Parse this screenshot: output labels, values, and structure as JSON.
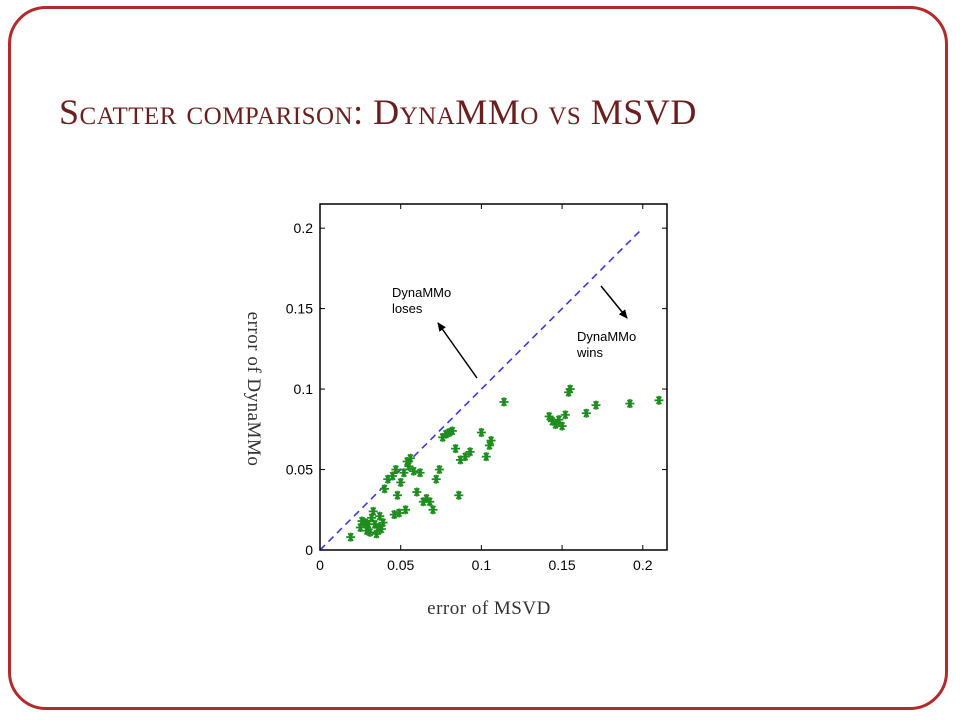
{
  "slide": {
    "title": "Scatter comparison: DynaMMo vs MSVD",
    "border_color": "#b22b2b",
    "title_color": "#6b1e1e"
  },
  "chart_data": {
    "type": "scatter",
    "xlabel": "error of MSVD",
    "ylabel": "error of DynaMMo",
    "xlim": [
      0,
      0.215
    ],
    "ylim": [
      0,
      0.215
    ],
    "xticks": [
      "0",
      "0.05",
      "0.1",
      "0.15",
      "0.2"
    ],
    "yticks": [
      "0",
      "0.05",
      "0.1",
      "0.15",
      "0.2"
    ],
    "grid": false,
    "marker": "asterisk",
    "marker_color": "#1e8c1e",
    "reference_line": {
      "style": "dashed",
      "color": "#3a3ad6",
      "from": [
        0,
        0
      ],
      "to": [
        0.2,
        0.2
      ]
    },
    "annotations": [
      {
        "text_lines": [
          "DynaMMo",
          "loses"
        ]
      },
      {
        "text_lines": [
          "DynaMMo",
          "wins"
        ]
      }
    ],
    "series": [
      {
        "points": [
          [
            0.019,
            0.008
          ],
          [
            0.025,
            0.014
          ],
          [
            0.026,
            0.018
          ],
          [
            0.028,
            0.017
          ],
          [
            0.029,
            0.012
          ],
          [
            0.03,
            0.016
          ],
          [
            0.031,
            0.011
          ],
          [
            0.032,
            0.02
          ],
          [
            0.033,
            0.024
          ],
          [
            0.034,
            0.016
          ],
          [
            0.035,
            0.01
          ],
          [
            0.036,
            0.014
          ],
          [
            0.037,
            0.021
          ],
          [
            0.038,
            0.013
          ],
          [
            0.039,
            0.017
          ],
          [
            0.04,
            0.038
          ],
          [
            0.042,
            0.044
          ],
          [
            0.045,
            0.046
          ],
          [
            0.046,
            0.022
          ],
          [
            0.047,
            0.05
          ],
          [
            0.048,
            0.034
          ],
          [
            0.049,
            0.023
          ],
          [
            0.05,
            0.042
          ],
          [
            0.052,
            0.048
          ],
          [
            0.053,
            0.025
          ],
          [
            0.054,
            0.055
          ],
          [
            0.055,
            0.052
          ],
          [
            0.056,
            0.057
          ],
          [
            0.058,
            0.049
          ],
          [
            0.06,
            0.036
          ],
          [
            0.062,
            0.048
          ],
          [
            0.064,
            0.03
          ],
          [
            0.066,
            0.032
          ],
          [
            0.068,
            0.03
          ],
          [
            0.07,
            0.025
          ],
          [
            0.072,
            0.044
          ],
          [
            0.074,
            0.05
          ],
          [
            0.076,
            0.07
          ],
          [
            0.078,
            0.072
          ],
          [
            0.08,
            0.073
          ],
          [
            0.082,
            0.074
          ],
          [
            0.084,
            0.063
          ],
          [
            0.086,
            0.034
          ],
          [
            0.087,
            0.056
          ],
          [
            0.09,
            0.058
          ],
          [
            0.093,
            0.061
          ],
          [
            0.1,
            0.073
          ],
          [
            0.103,
            0.058
          ],
          [
            0.105,
            0.065
          ],
          [
            0.106,
            0.068
          ],
          [
            0.114,
            0.092
          ],
          [
            0.142,
            0.083
          ],
          [
            0.144,
            0.08
          ],
          [
            0.146,
            0.078
          ],
          [
            0.148,
            0.081
          ],
          [
            0.15,
            0.077
          ],
          [
            0.152,
            0.084
          ],
          [
            0.154,
            0.098
          ],
          [
            0.155,
            0.1
          ],
          [
            0.165,
            0.085
          ],
          [
            0.171,
            0.09
          ],
          [
            0.192,
            0.091
          ],
          [
            0.21,
            0.093
          ]
        ]
      }
    ]
  }
}
